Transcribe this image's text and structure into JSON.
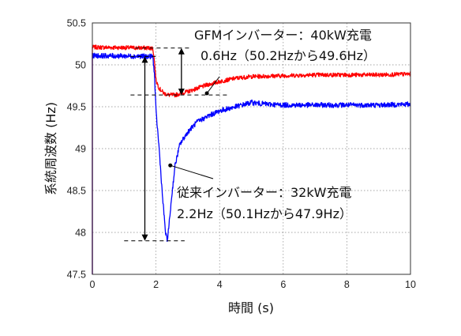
{
  "chart_data": {
    "type": "line",
    "xlabel": "時間 (s)",
    "ylabel": "系統周波数 (Hz)",
    "xlim": [
      0,
      10
    ],
    "ylim": [
      47.5,
      50.5
    ],
    "xticks": [
      "0",
      "2",
      "4",
      "6",
      "8",
      "10"
    ],
    "yticks": [
      "47.5",
      "48",
      "48.5",
      "49",
      "49.5",
      "50",
      "50.5"
    ],
    "grid": true,
    "series": [
      {
        "color": "#ff0000",
        "x": [
          0,
          1.9,
          1.95,
          2.0,
          2.1,
          2.25,
          2.4,
          2.6,
          2.8,
          3.0,
          3.3,
          3.6,
          4.0,
          4.5,
          5.0,
          6.0,
          7.0,
          8.0,
          9.0,
          10.0
        ],
        "y": [
          50.21,
          50.2,
          50.05,
          49.82,
          49.72,
          49.66,
          49.64,
          49.64,
          49.66,
          49.68,
          49.72,
          49.76,
          49.8,
          49.84,
          49.86,
          49.87,
          49.88,
          49.88,
          49.88,
          49.89
        ]
      },
      {
        "color": "#0000ff",
        "x": [
          0,
          1.9,
          1.95,
          2.0,
          2.1,
          2.2,
          2.3,
          2.35,
          2.4,
          2.5,
          2.6,
          2.75,
          3.0,
          3.3,
          3.7,
          4.0,
          4.5,
          5.0,
          5.5,
          6.0,
          7.0,
          8.0,
          9.0,
          10.0
        ],
        "y": [
          50.11,
          50.1,
          49.9,
          49.45,
          49.0,
          48.45,
          48.0,
          47.9,
          48.05,
          48.45,
          48.8,
          49.05,
          49.2,
          49.32,
          49.4,
          49.45,
          49.5,
          49.55,
          49.53,
          49.52,
          49.52,
          49.52,
          49.52,
          49.53
        ]
      }
    ],
    "annotations": {
      "gfm_line1": "GFMインバーター：40kW充電",
      "gfm_line2": "0.6Hz（50.2Hzから49.6Hz）",
      "conv_line1": "従来インバーター：32kW充電",
      "conv_line2": "2.2Hz（50.1Hzから47.9Hz）"
    }
  }
}
